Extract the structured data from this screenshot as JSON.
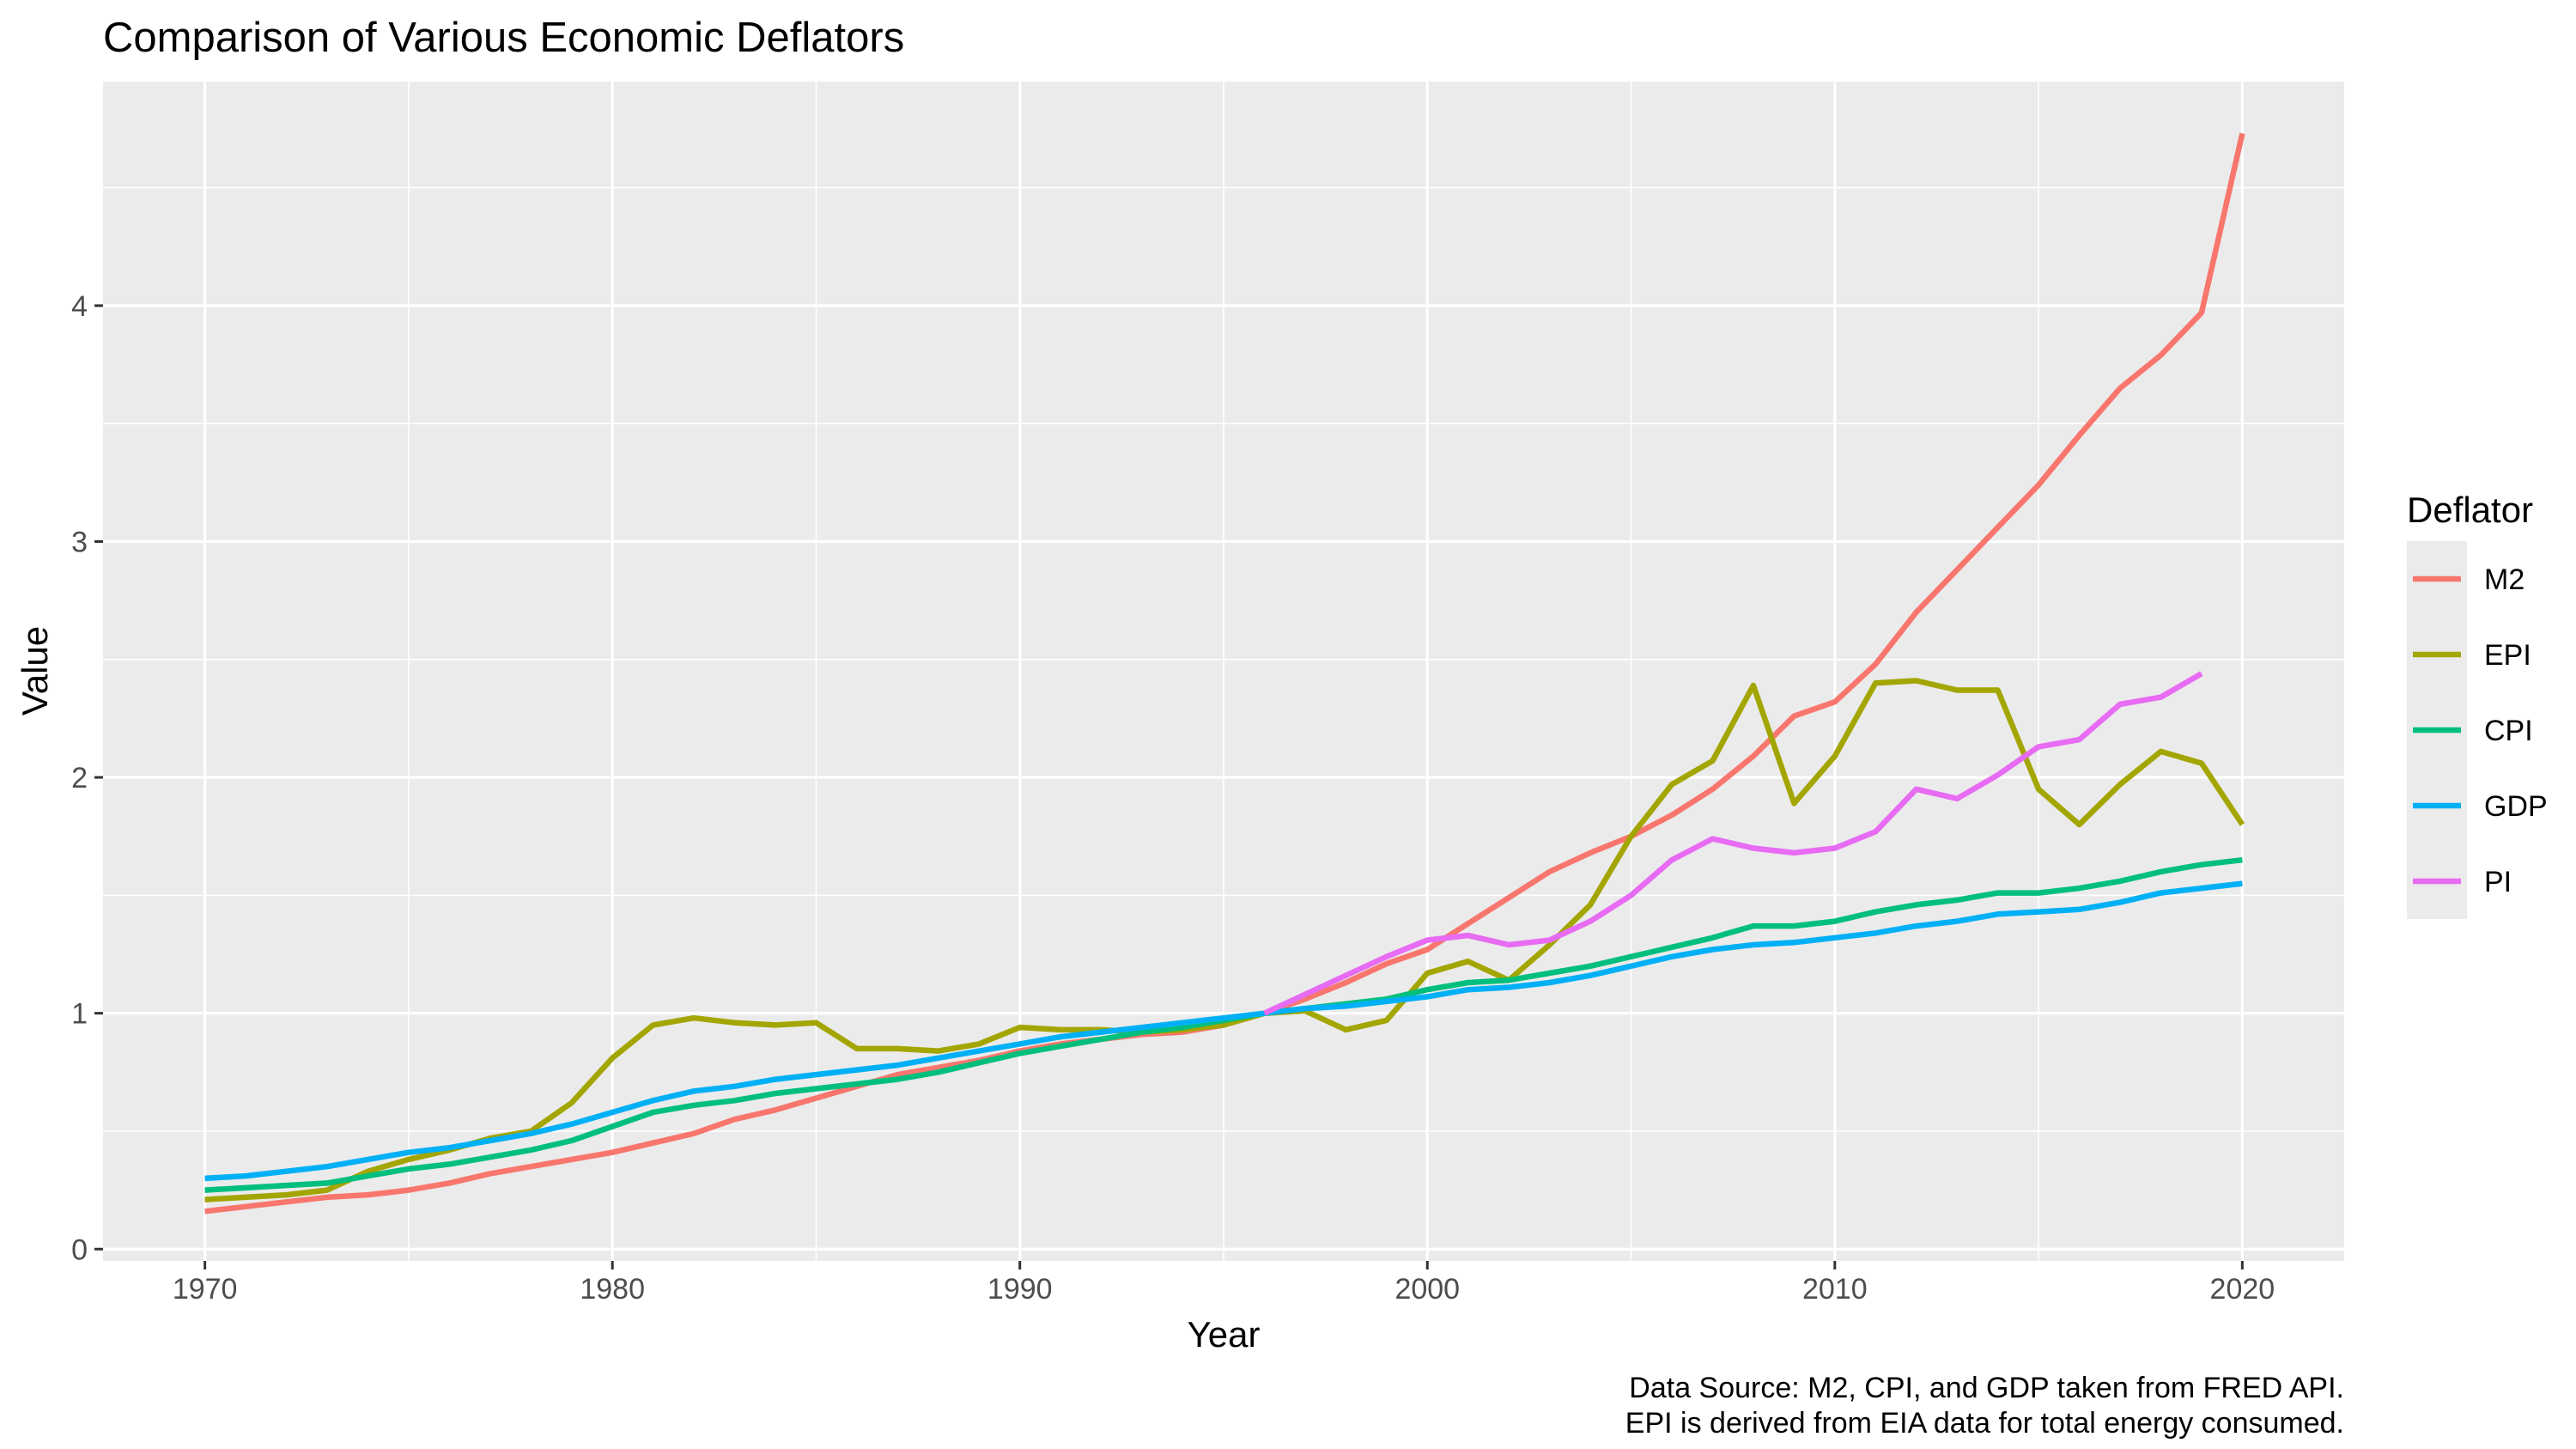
{
  "chart_data": {
    "type": "line",
    "title": "Comparison of Various Economic Deflators",
    "xlabel": "Year",
    "ylabel": "Value",
    "xlim": [
      1967.5,
      2022.5
    ],
    "ylim": [
      -0.05,
      4.95
    ],
    "x_ticks": [
      1970,
      1980,
      1990,
      2000,
      2010,
      2020
    ],
    "y_ticks": [
      0,
      1,
      2,
      3,
      4
    ],
    "grid": true,
    "legend": {
      "title": "Deflator",
      "position": "right",
      "entries": [
        "M2",
        "EPI",
        "CPI",
        "GDP",
        "PI"
      ]
    },
    "caption": [
      "Data Source: M2, CPI, and GDP taken from FRED API.",
      "EPI is derived from EIA data for total energy consumed."
    ],
    "series": [
      {
        "name": "M2",
        "color": "#F8766D",
        "x": [
          1970,
          1971,
          1972,
          1973,
          1974,
          1975,
          1976,
          1977,
          1978,
          1979,
          1980,
          1981,
          1982,
          1983,
          1984,
          1985,
          1986,
          1987,
          1988,
          1989,
          1990,
          1991,
          1992,
          1993,
          1994,
          1995,
          1996,
          1997,
          1998,
          1999,
          2000,
          2001,
          2002,
          2003,
          2004,
          2005,
          2006,
          2007,
          2008,
          2009,
          2010,
          2011,
          2012,
          2013,
          2014,
          2015,
          2016,
          2017,
          2018,
          2019,
          2020
        ],
        "y": [
          0.16,
          0.18,
          0.2,
          0.22,
          0.23,
          0.25,
          0.28,
          0.32,
          0.35,
          0.38,
          0.41,
          0.45,
          0.49,
          0.55,
          0.59,
          0.64,
          0.69,
          0.74,
          0.77,
          0.8,
          0.84,
          0.87,
          0.89,
          0.91,
          0.92,
          0.95,
          1.0,
          1.06,
          1.13,
          1.21,
          1.27,
          1.38,
          1.49,
          1.6,
          1.68,
          1.75,
          1.84,
          1.95,
          2.09,
          2.26,
          2.32,
          2.48,
          2.7,
          2.88,
          3.06,
          3.24,
          3.45,
          3.65,
          3.79,
          3.97,
          4.73
        ]
      },
      {
        "name": "EPI",
        "color": "#A3A500",
        "x": [
          1970,
          1971,
          1972,
          1973,
          1974,
          1975,
          1976,
          1977,
          1978,
          1979,
          1980,
          1981,
          1982,
          1983,
          1984,
          1985,
          1986,
          1987,
          1988,
          1989,
          1990,
          1991,
          1992,
          1993,
          1994,
          1995,
          1996,
          1997,
          1998,
          1999,
          2000,
          2001,
          2002,
          2003,
          2004,
          2005,
          2006,
          2007,
          2008,
          2009,
          2010,
          2011,
          2012,
          2013,
          2014,
          2015,
          2016,
          2017,
          2018,
          2019,
          2020
        ],
        "y": [
          0.21,
          0.22,
          0.23,
          0.25,
          0.33,
          0.38,
          0.42,
          0.47,
          0.5,
          0.62,
          0.81,
          0.95,
          0.98,
          0.96,
          0.95,
          0.96,
          0.85,
          0.85,
          0.84,
          0.87,
          0.94,
          0.93,
          0.93,
          0.92,
          0.93,
          0.95,
          1.0,
          1.01,
          0.93,
          0.97,
          1.17,
          1.22,
          1.14,
          1.29,
          1.46,
          1.75,
          1.97,
          2.07,
          2.39,
          1.89,
          2.09,
          2.4,
          2.41,
          2.37,
          2.37,
          1.95,
          1.8,
          1.97,
          2.11,
          2.06,
          1.8
        ]
      },
      {
        "name": "CPI",
        "color": "#00BF7D",
        "x": [
          1970,
          1971,
          1972,
          1973,
          1974,
          1975,
          1976,
          1977,
          1978,
          1979,
          1980,
          1981,
          1982,
          1983,
          1984,
          1985,
          1986,
          1987,
          1988,
          1989,
          1990,
          1991,
          1992,
          1993,
          1994,
          1995,
          1996,
          1997,
          1998,
          1999,
          2000,
          2001,
          2002,
          2003,
          2004,
          2005,
          2006,
          2007,
          2008,
          2009,
          2010,
          2011,
          2012,
          2013,
          2014,
          2015,
          2016,
          2017,
          2018,
          2019,
          2020
        ],
        "y": [
          0.25,
          0.26,
          0.27,
          0.28,
          0.31,
          0.34,
          0.36,
          0.39,
          0.42,
          0.46,
          0.52,
          0.58,
          0.61,
          0.63,
          0.66,
          0.68,
          0.7,
          0.72,
          0.75,
          0.79,
          0.83,
          0.86,
          0.89,
          0.92,
          0.94,
          0.97,
          1.0,
          1.02,
          1.04,
          1.06,
          1.1,
          1.13,
          1.14,
          1.17,
          1.2,
          1.24,
          1.28,
          1.32,
          1.37,
          1.37,
          1.39,
          1.43,
          1.46,
          1.48,
          1.51,
          1.51,
          1.53,
          1.56,
          1.6,
          1.63,
          1.65
        ]
      },
      {
        "name": "GDP",
        "color": "#00B0F6",
        "x": [
          1970,
          1971,
          1972,
          1973,
          1974,
          1975,
          1976,
          1977,
          1978,
          1979,
          1980,
          1981,
          1982,
          1983,
          1984,
          1985,
          1986,
          1987,
          1988,
          1989,
          1990,
          1991,
          1992,
          1993,
          1994,
          1995,
          1996,
          1997,
          1998,
          1999,
          2000,
          2001,
          2002,
          2003,
          2004,
          2005,
          2006,
          2007,
          2008,
          2009,
          2010,
          2011,
          2012,
          2013,
          2014,
          2015,
          2016,
          2017,
          2018,
          2019,
          2020
        ],
        "y": [
          0.3,
          0.31,
          0.33,
          0.35,
          0.38,
          0.41,
          0.43,
          0.46,
          0.49,
          0.53,
          0.58,
          0.63,
          0.67,
          0.69,
          0.72,
          0.74,
          0.76,
          0.78,
          0.81,
          0.84,
          0.87,
          0.9,
          0.92,
          0.94,
          0.96,
          0.98,
          1.0,
          1.02,
          1.03,
          1.05,
          1.07,
          1.1,
          1.11,
          1.13,
          1.16,
          1.2,
          1.24,
          1.27,
          1.29,
          1.3,
          1.32,
          1.34,
          1.37,
          1.39,
          1.42,
          1.43,
          1.44,
          1.47,
          1.51,
          1.53,
          1.55
        ]
      },
      {
        "name": "PI",
        "color": "#E76BF3",
        "x": [
          1996,
          1997,
          1998,
          1999,
          2000,
          2001,
          2002,
          2003,
          2004,
          2005,
          2006,
          2007,
          2008,
          2009,
          2010,
          2011,
          2012,
          2013,
          2014,
          2015,
          2016,
          2017,
          2018,
          2019
        ],
        "y": [
          1.0,
          1.08,
          1.16,
          1.24,
          1.31,
          1.33,
          1.29,
          1.31,
          1.39,
          1.5,
          1.65,
          1.74,
          1.7,
          1.68,
          1.7,
          1.77,
          1.95,
          1.91,
          2.01,
          2.13,
          2.16,
          2.31,
          2.34,
          2.44
        ]
      }
    ]
  }
}
